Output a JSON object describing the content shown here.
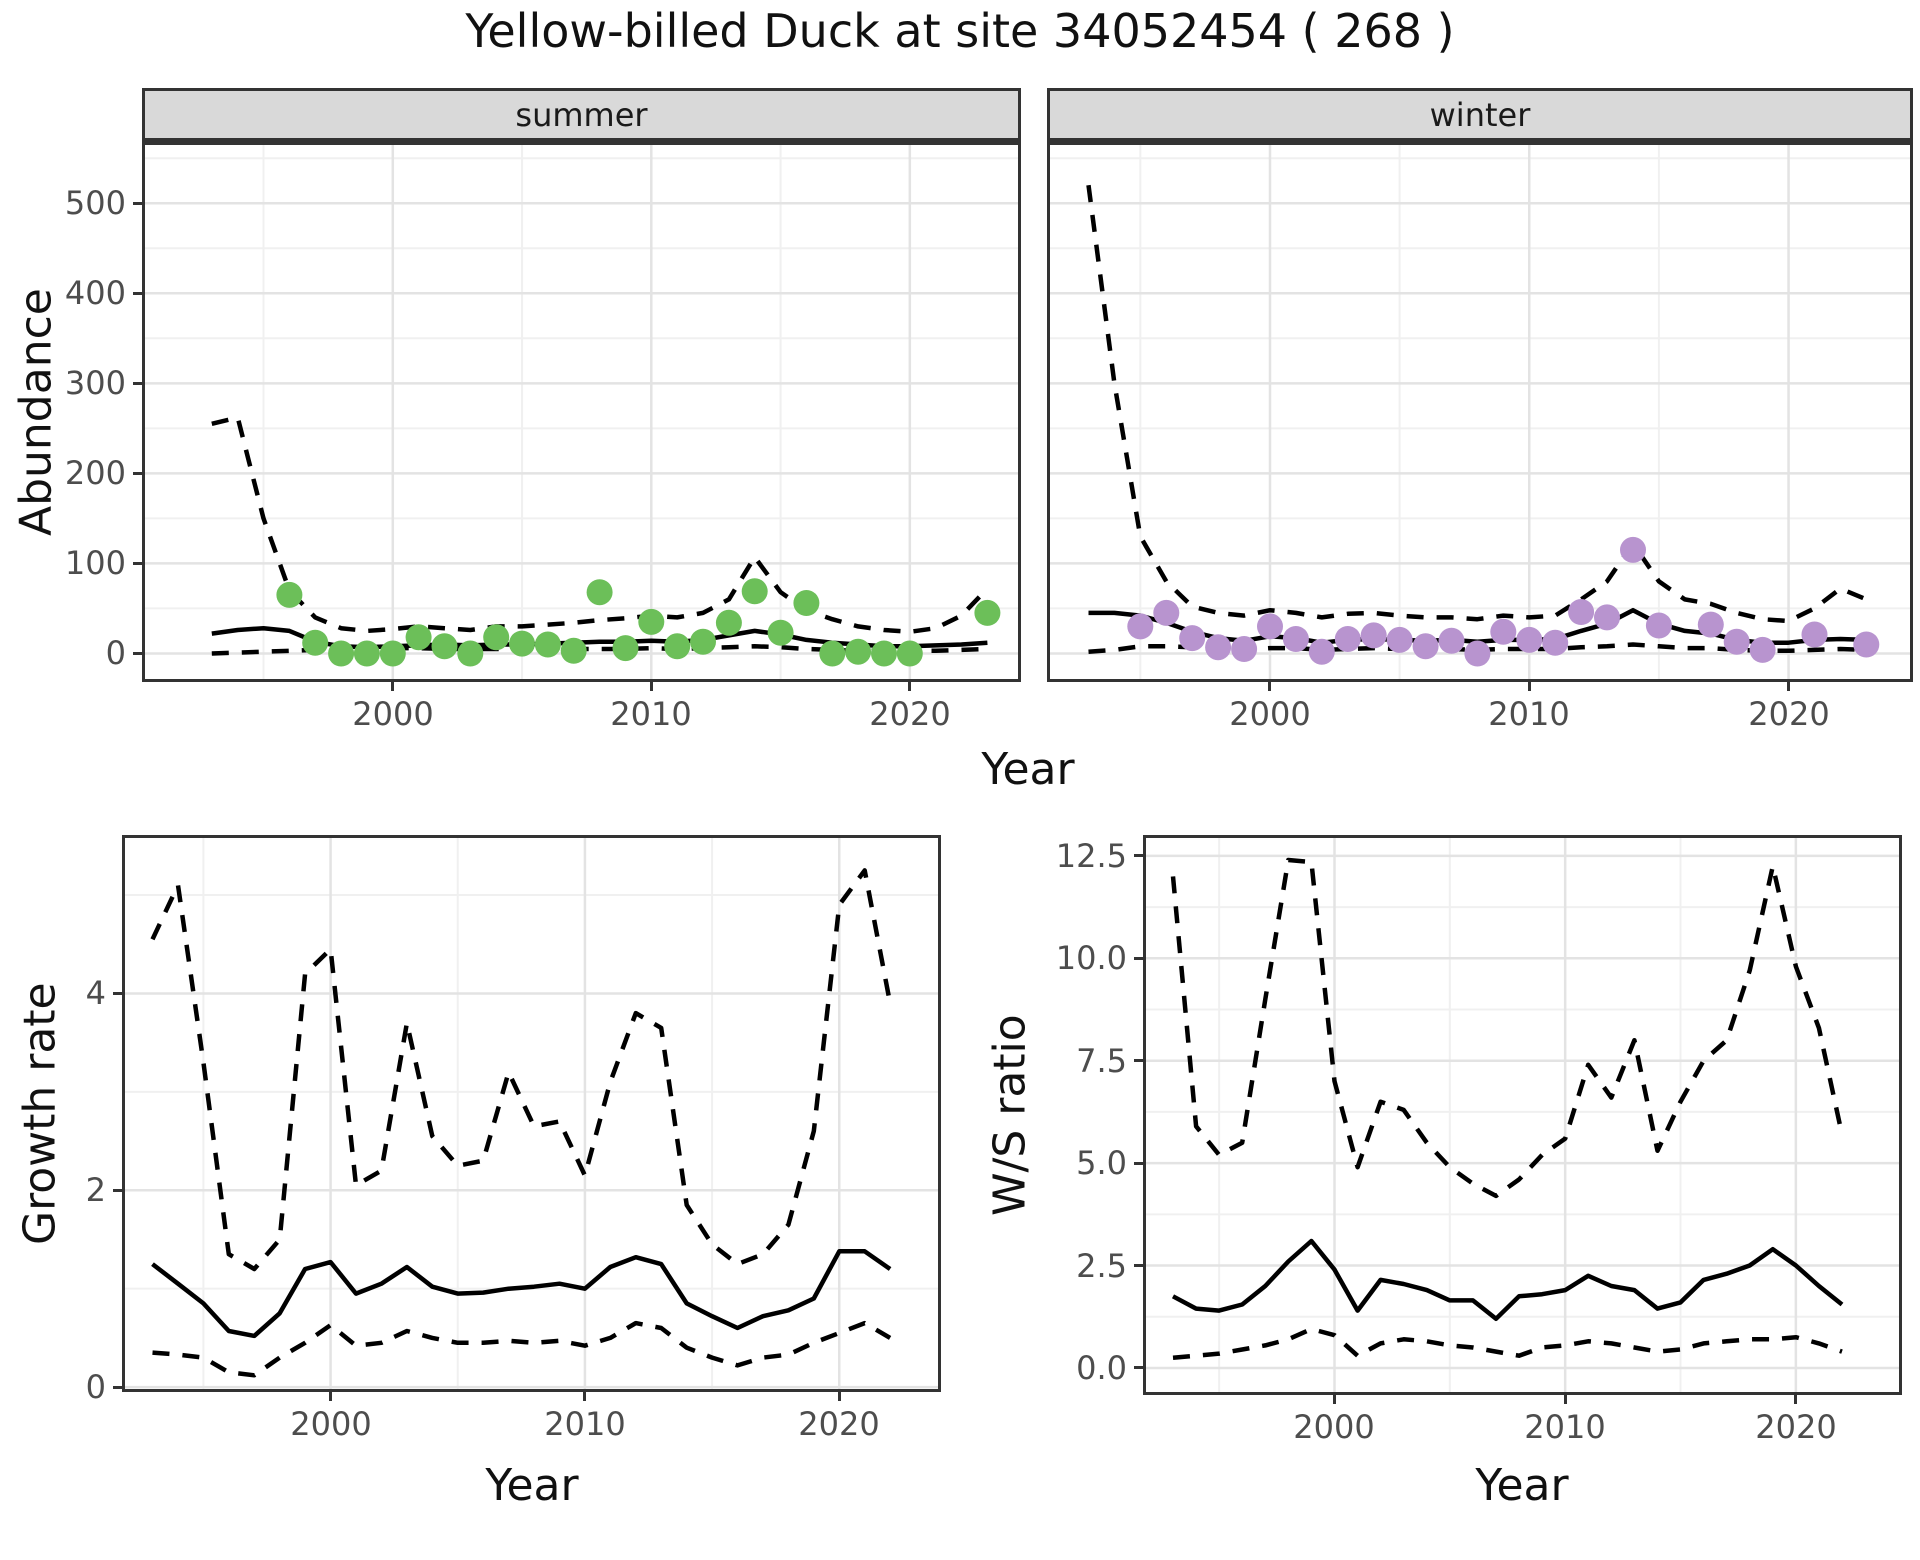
{
  "title": "Yellow-billed Duck at site 34052454 ( 268 )",
  "labels": {
    "x": "Year",
    "y_abundance": "Abundance",
    "y_growth": "Growth rate",
    "y_ws": "W/S ratio"
  },
  "facets": {
    "summer": "summer",
    "winter": "winter"
  },
  "colors": {
    "summer_points": "#6cbf59",
    "winter_points": "#b894cf",
    "line": "#000000",
    "tick_text": "#4d4d4d",
    "strip_bg": "#d9d9d9",
    "grid_major": "#e3e3e3",
    "grid_minor": "#f0f0f0",
    "panel_border": "#333333"
  },
  "chart_data": [
    {
      "id": "summer",
      "type": "scatter",
      "facet_label": "summer",
      "xlabel": "Year",
      "ylabel": "Abundance",
      "xlim": [
        1990.3,
        2024.3
      ],
      "ylim": [
        -31.7,
        568
      ],
      "x_major": [
        2000,
        2010,
        2020
      ],
      "x_tick_labels": [
        "2000",
        "2010",
        "2020"
      ],
      "x_minor": [
        1995,
        2005,
        2015
      ],
      "y_major": [
        0,
        100,
        200,
        300,
        400,
        500
      ],
      "y_tick_labels": [
        "0",
        "100",
        "200",
        "300",
        "400",
        "500"
      ],
      "y_minor": [
        50,
        150,
        250,
        350,
        450,
        550
      ],
      "series": [
        {
          "name": "lower_ci",
          "style": "dashed",
          "x": [
            1993,
            1994,
            1995,
            1996,
            1997,
            1998,
            1999,
            2000,
            2001,
            2002,
            2003,
            2004,
            2005,
            2006,
            2007,
            2008,
            2009,
            2010,
            2011,
            2012,
            2013,
            2014,
            2015,
            2016,
            2017,
            2018,
            2019,
            2020,
            2021,
            2022,
            2023
          ],
          "y": [
            0,
            1,
            2,
            3,
            4,
            5,
            5,
            6,
            6,
            5,
            5,
            5,
            5,
            5,
            5,
            5,
            5,
            6,
            5,
            6,
            7,
            8,
            7,
            5,
            4,
            3,
            3,
            3,
            3,
            4,
            5
          ]
        },
        {
          "name": "upper_ci",
          "style": "dashed",
          "x": [
            1993,
            1994,
            1995,
            1996,
            1997,
            1998,
            1999,
            2000,
            2001,
            2002,
            2003,
            2004,
            2005,
            2006,
            2007,
            2008,
            2009,
            2010,
            2011,
            2012,
            2013,
            2014,
            2015,
            2016,
            2017,
            2018,
            2019,
            2020,
            2021,
            2022,
            2023
          ],
          "y": [
            255,
            262,
            150,
            70,
            40,
            28,
            25,
            27,
            30,
            28,
            26,
            30,
            30,
            32,
            34,
            37,
            39,
            42,
            40,
            45,
            60,
            107,
            68,
            48,
            38,
            30,
            26,
            24,
            28,
            42,
            72
          ]
        },
        {
          "name": "fit",
          "style": "solid",
          "x": [
            1993,
            1994,
            1995,
            1996,
            1997,
            1998,
            1999,
            2000,
            2001,
            2002,
            2003,
            2004,
            2005,
            2006,
            2007,
            2008,
            2009,
            2010,
            2011,
            2012,
            2013,
            2014,
            2015,
            2016,
            2017,
            2018,
            2019,
            2020,
            2021,
            2022,
            2023
          ],
          "y": [
            22,
            26,
            28,
            25,
            13,
            8,
            7,
            8,
            9,
            10,
            9,
            10,
            10,
            11,
            12,
            13,
            13,
            14,
            13,
            15,
            20,
            25,
            21,
            15,
            12,
            10,
            8,
            8,
            9,
            10,
            12
          ]
        }
      ],
      "points": {
        "name": "observed_summer",
        "color_key": "summer_points",
        "x": [
          1996,
          1997,
          1998,
          1999,
          2000,
          2001,
          2002,
          2003,
          2004,
          2005,
          2006,
          2007,
          2008,
          2009,
          2010,
          2011,
          2012,
          2013,
          2014,
          2015,
          2016,
          2017,
          2018,
          2019,
          2020,
          2023
        ],
        "y": [
          65,
          12,
          0,
          0,
          0,
          18,
          8,
          0,
          18,
          11,
          10,
          3,
          68,
          6,
          35,
          8,
          13,
          34,
          69,
          23,
          56,
          0,
          2,
          0,
          0,
          45
        ]
      }
    },
    {
      "id": "winter",
      "type": "scatter",
      "facet_label": "winter",
      "xlabel": "Year",
      "ylabel": "Abundance",
      "xlim": [
        1991.4,
        2024.8
      ],
      "ylim": [
        -31.7,
        568
      ],
      "x_major": [
        2000,
        2010,
        2020
      ],
      "x_tick_labels": [
        "2000",
        "2010",
        "2020"
      ],
      "x_minor": [
        1995,
        2005,
        2015
      ],
      "y_major": [
        0,
        100,
        200,
        300,
        400,
        500
      ],
      "y_tick_labels": [
        "0",
        "100",
        "200",
        "300",
        "400",
        "500"
      ],
      "y_minor": [
        50,
        150,
        250,
        350,
        450,
        550
      ],
      "series": [
        {
          "name": "lower_ci",
          "style": "dashed",
          "x": [
            1993,
            1994,
            1995,
            1996,
            1997,
            1998,
            1999,
            2000,
            2001,
            2002,
            2003,
            2004,
            2005,
            2006,
            2007,
            2008,
            2009,
            2010,
            2011,
            2012,
            2013,
            2014,
            2015,
            2016,
            2017,
            2018,
            2019,
            2020,
            2021,
            2022,
            2023
          ],
          "y": [
            2,
            4,
            8,
            8,
            7,
            5,
            4,
            6,
            6,
            4,
            5,
            6,
            5,
            5,
            5,
            4,
            5,
            5,
            5,
            7,
            8,
            10,
            8,
            6,
            6,
            4,
            3,
            3,
            4,
            5,
            4
          ]
        },
        {
          "name": "upper_ci",
          "style": "dashed",
          "x": [
            1993,
            1994,
            1995,
            1996,
            1997,
            1998,
            1999,
            2000,
            2001,
            2002,
            2003,
            2004,
            2005,
            2006,
            2007,
            2008,
            2009,
            2010,
            2011,
            2012,
            2013,
            2014,
            2015,
            2016,
            2017,
            2018,
            2019,
            2020,
            2021,
            2022,
            2023
          ],
          "y": [
            520,
            300,
            130,
            80,
            52,
            45,
            42,
            48,
            45,
            40,
            44,
            45,
            42,
            40,
            40,
            38,
            42,
            40,
            42,
            60,
            80,
            122,
            80,
            60,
            55,
            45,
            38,
            36,
            50,
            72,
            60
          ]
        },
        {
          "name": "fit",
          "style": "solid",
          "x": [
            1993,
            1994,
            1995,
            1996,
            1997,
            1998,
            1999,
            2000,
            2001,
            2002,
            2003,
            2004,
            2005,
            2006,
            2007,
            2008,
            2009,
            2010,
            2011,
            2012,
            2013,
            2014,
            2015,
            2016,
            2017,
            2018,
            2019,
            2020,
            2021,
            2022,
            2023
          ],
          "y": [
            45,
            45,
            42,
            34,
            24,
            17,
            14,
            19,
            17,
            12,
            15,
            16,
            15,
            14,
            15,
            13,
            15,
            15,
            16,
            25,
            33,
            48,
            33,
            25,
            22,
            15,
            12,
            12,
            15,
            16,
            15
          ]
        }
      ],
      "points": {
        "name": "observed_winter",
        "color_key": "winter_points",
        "x": [
          1995,
          1996,
          1997,
          1998,
          1999,
          2000,
          2001,
          2002,
          2003,
          2004,
          2005,
          2006,
          2007,
          2008,
          2009,
          2010,
          2011,
          2012,
          2013,
          2014,
          2015,
          2017,
          2018,
          2019,
          2021,
          2023
        ],
        "y": [
          30,
          45,
          17,
          7,
          5,
          30,
          16,
          2,
          16,
          20,
          15,
          8,
          14,
          0,
          24,
          15,
          12,
          46,
          40,
          115,
          31,
          32,
          13,
          4,
          21,
          10
        ]
      }
    },
    {
      "id": "growth",
      "type": "line",
      "facet_label": "",
      "xlabel": "Year",
      "ylabel": "Growth rate",
      "xlim": [
        1991.8,
        2024.0
      ],
      "ylim": [
        -0.05,
        5.61
      ],
      "x_major": [
        2000,
        2010,
        2020
      ],
      "x_tick_labels": [
        "2000",
        "2010",
        "2020"
      ],
      "x_minor": [
        1995,
        2005,
        2015
      ],
      "y_major": [
        0,
        2,
        4
      ],
      "y_tick_labels": [
        "0",
        "2",
        "4"
      ],
      "y_minor": [
        1,
        3,
        5
      ],
      "series": [
        {
          "name": "lower_ci",
          "style": "dashed",
          "x": [
            1993,
            1994,
            1995,
            1996,
            1997,
            1998,
            1999,
            2000,
            2001,
            2002,
            2003,
            2004,
            2005,
            2006,
            2007,
            2008,
            2009,
            2010,
            2011,
            2012,
            2013,
            2014,
            2015,
            2016,
            2017,
            2018,
            2019,
            2020,
            2021,
            2022
          ],
          "y": [
            0.35,
            0.33,
            0.3,
            0.15,
            0.12,
            0.3,
            0.45,
            0.63,
            0.42,
            0.45,
            0.57,
            0.5,
            0.45,
            0.45,
            0.47,
            0.45,
            0.47,
            0.42,
            0.5,
            0.65,
            0.6,
            0.4,
            0.3,
            0.22,
            0.3,
            0.33,
            0.45,
            0.55,
            0.65,
            0.5
          ]
        },
        {
          "name": "upper_ci",
          "style": "dashed",
          "x": [
            1993,
            1994,
            1995,
            1996,
            1997,
            1998,
            1999,
            2000,
            2001,
            2002,
            2003,
            2004,
            2005,
            2006,
            2007,
            2008,
            2009,
            2010,
            2011,
            2012,
            2013,
            2014,
            2015,
            2016,
            2017,
            2018,
            2019,
            2020,
            2021,
            2022
          ],
          "y": [
            4.55,
            5.1,
            3.3,
            1.35,
            1.2,
            1.5,
            4.2,
            4.45,
            2.05,
            2.2,
            3.7,
            2.55,
            2.25,
            2.3,
            3.2,
            2.65,
            2.7,
            2.15,
            3.1,
            3.8,
            3.65,
            1.85,
            1.45,
            1.25,
            1.35,
            1.65,
            2.6,
            4.9,
            5.25,
            3.9
          ]
        },
        {
          "name": "fit",
          "style": "solid",
          "x": [
            1993,
            1994,
            1995,
            1996,
            1997,
            1998,
            1999,
            2000,
            2001,
            2002,
            2003,
            2004,
            2005,
            2006,
            2007,
            2008,
            2009,
            2010,
            2011,
            2012,
            2013,
            2014,
            2015,
            2016,
            2017,
            2018,
            2019,
            2020,
            2021,
            2022
          ],
          "y": [
            1.25,
            1.05,
            0.85,
            0.57,
            0.52,
            0.75,
            1.2,
            1.27,
            0.95,
            1.05,
            1.22,
            1.02,
            0.95,
            0.96,
            1.0,
            1.02,
            1.05,
            1.0,
            1.22,
            1.32,
            1.25,
            0.85,
            0.72,
            0.6,
            0.72,
            0.78,
            0.9,
            1.38,
            1.38,
            1.2
          ]
        }
      ],
      "points": null
    },
    {
      "id": "ws",
      "type": "line",
      "facet_label": "",
      "xlabel": "Year",
      "ylabel": "W/S ratio",
      "xlim": [
        1991.7,
        2024.6
      ],
      "ylim": [
        -0.66,
        13.01
      ],
      "x_major": [
        2000,
        2010,
        2020
      ],
      "x_tick_labels": [
        "2000",
        "2010",
        "2020"
      ],
      "x_minor": [
        1995,
        2005,
        2015
      ],
      "y_major": [
        0,
        2.5,
        5,
        7.5,
        10,
        12.5
      ],
      "y_tick_labels": [
        "0.0",
        "2.5",
        "5.0",
        "7.5",
        "10.0",
        "12.5"
      ],
      "y_minor": [
        1.25,
        3.75,
        6.25,
        8.75,
        11.25
      ],
      "series": [
        {
          "name": "lower_ci",
          "style": "dashed",
          "x": [
            1993,
            1994,
            1995,
            1996,
            1997,
            1998,
            1999,
            2000,
            2001,
            2002,
            2003,
            2004,
            2005,
            2006,
            2007,
            2008,
            2009,
            2010,
            2011,
            2012,
            2013,
            2014,
            2015,
            2016,
            2017,
            2018,
            2019,
            2020,
            2021,
            2022
          ],
          "y": [
            0.25,
            0.3,
            0.35,
            0.45,
            0.55,
            0.7,
            0.95,
            0.8,
            0.3,
            0.6,
            0.7,
            0.65,
            0.55,
            0.5,
            0.4,
            0.3,
            0.5,
            0.55,
            0.65,
            0.6,
            0.5,
            0.4,
            0.45,
            0.6,
            0.65,
            0.7,
            0.7,
            0.75,
            0.6,
            0.4
          ]
        },
        {
          "name": "upper_ci",
          "style": "dashed",
          "x": [
            1993,
            1994,
            1995,
            1996,
            1997,
            1998,
            1999,
            2000,
            2001,
            2002,
            2003,
            2004,
            2005,
            2006,
            2007,
            2008,
            2009,
            2010,
            2011,
            2012,
            2013,
            2014,
            2015,
            2016,
            2017,
            2018,
            2019,
            2020,
            2021,
            2022
          ],
          "y": [
            12.0,
            5.9,
            5.2,
            5.5,
            9.0,
            12.4,
            12.35,
            7.0,
            4.9,
            6.5,
            6.3,
            5.5,
            4.9,
            4.5,
            4.2,
            4.6,
            5.2,
            5.6,
            7.4,
            6.6,
            8.0,
            5.3,
            6.5,
            7.5,
            8.0,
            9.7,
            12.25,
            9.8,
            8.3,
            5.7
          ]
        },
        {
          "name": "fit",
          "style": "solid",
          "x": [
            1993,
            1994,
            1995,
            1996,
            1997,
            1998,
            1999,
            2000,
            2001,
            2002,
            2003,
            2004,
            2005,
            2006,
            2007,
            2008,
            2009,
            2010,
            2011,
            2012,
            2013,
            2014,
            2015,
            2016,
            2017,
            2018,
            2019,
            2020,
            2021,
            2022
          ],
          "y": [
            1.75,
            1.45,
            1.4,
            1.55,
            2.0,
            2.6,
            3.1,
            2.4,
            1.4,
            2.15,
            2.05,
            1.9,
            1.65,
            1.65,
            1.2,
            1.75,
            1.8,
            1.9,
            2.25,
            2.0,
            1.9,
            1.45,
            1.6,
            2.15,
            2.3,
            2.5,
            2.9,
            2.5,
            2.0,
            1.55
          ]
        }
      ],
      "points": null
    }
  ]
}
